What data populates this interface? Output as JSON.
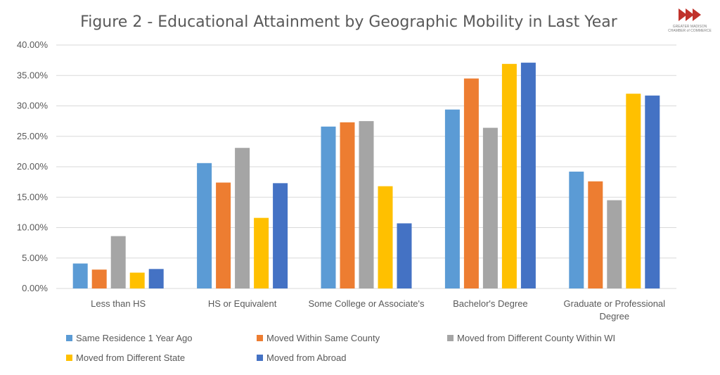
{
  "logo": {
    "line1": "GREATER MADISON",
    "line2": "CHAMBER of COMMERCE",
    "color": "#c0322b"
  },
  "chart_data": {
    "type": "bar",
    "title": "Figure 2 - Educational Attainment by Geographic Mobility in Last Year",
    "xlabel": "",
    "ylabel": "",
    "ylim": [
      0,
      40
    ],
    "yticks": [
      "0.00%",
      "5.00%",
      "10.00%",
      "15.00%",
      "20.00%",
      "25.00%",
      "30.00%",
      "35.00%",
      "40.00%"
    ],
    "grid": true,
    "legend_position": "bottom",
    "categories": [
      [
        "Less than HS"
      ],
      [
        "HS or Equivalent"
      ],
      [
        "Some College or Associate's"
      ],
      [
        "Bachelor's Degree"
      ],
      [
        "Graduate or Professional",
        "Degree"
      ]
    ],
    "series": [
      {
        "name": "Same Residence 1 Year Ago",
        "color": "#5b9bd5",
        "values": [
          4.1,
          20.6,
          26.6,
          29.4,
          19.2
        ]
      },
      {
        "name": "Moved Within Same County",
        "color": "#ed7d31",
        "values": [
          3.1,
          17.4,
          27.3,
          34.5,
          17.6
        ]
      },
      {
        "name": "Moved from Different County Within WI",
        "color": "#a5a5a5",
        "values": [
          8.6,
          23.1,
          27.5,
          26.4,
          14.5
        ]
      },
      {
        "name": "Moved from Different State",
        "color": "#ffc000",
        "values": [
          2.6,
          11.6,
          16.8,
          36.9,
          32.0
        ]
      },
      {
        "name": "Moved from Abroad",
        "color": "#4472c4",
        "values": [
          3.2,
          17.3,
          10.7,
          37.1,
          31.7
        ]
      }
    ]
  }
}
